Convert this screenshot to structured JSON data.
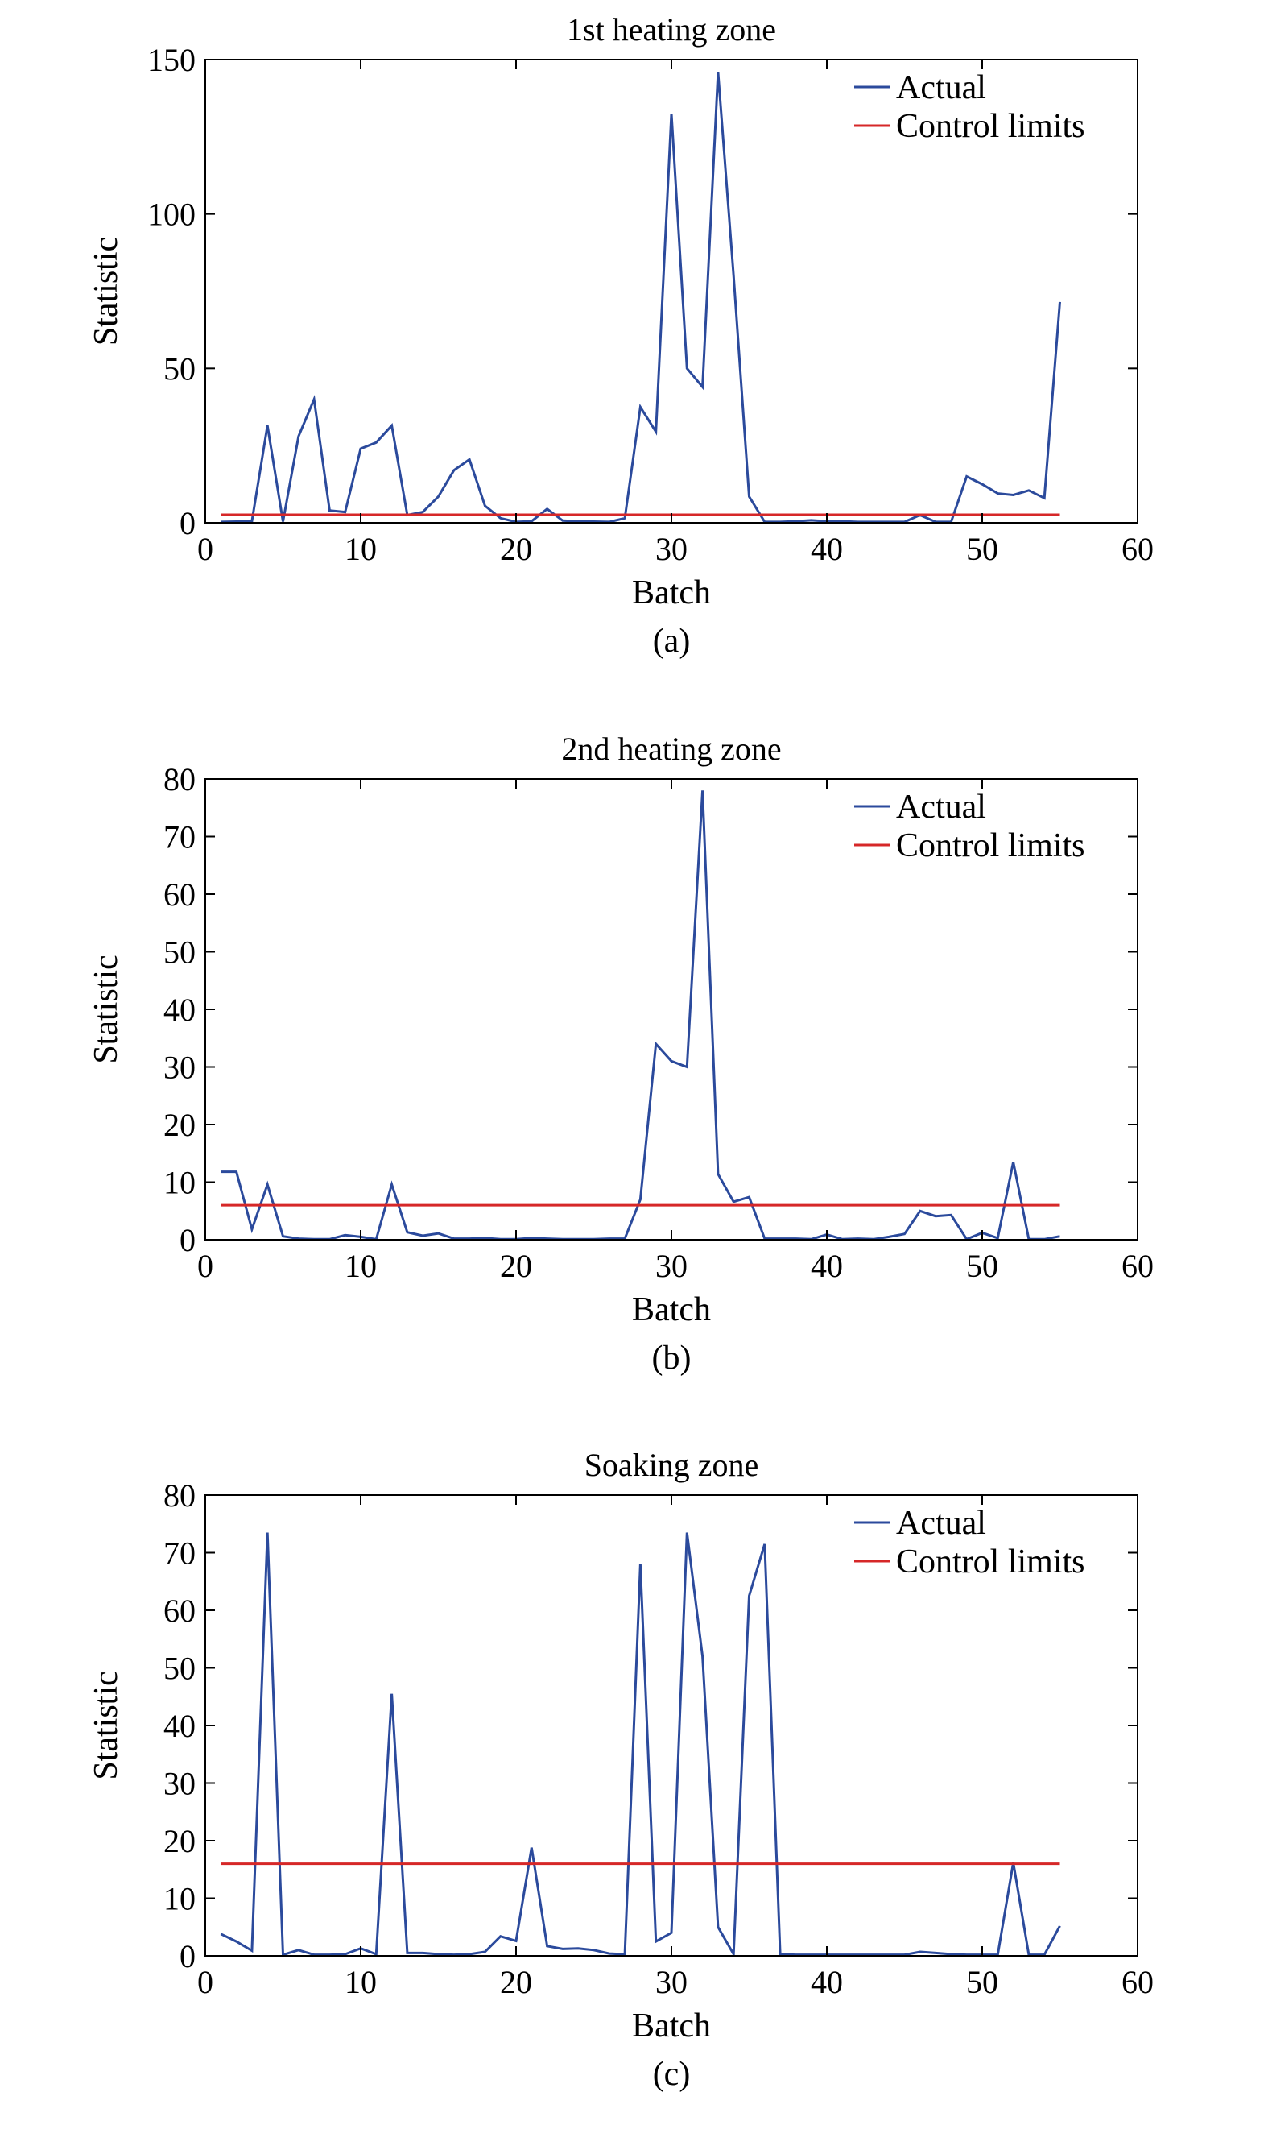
{
  "chart_data": [
    {
      "type": "line",
      "title": "1st heating zone",
      "xlabel": "Batch",
      "ylabel": "Statistic",
      "caption": "(a)",
      "xlim": [
        0,
        60
      ],
      "ylim": [
        0,
        150
      ],
      "xticks": [
        0,
        10,
        20,
        30,
        40,
        50,
        60
      ],
      "yticks": [
        0,
        50,
        100,
        150
      ],
      "grid": false,
      "legend_position": "top-right",
      "series": [
        {
          "name": "Actual",
          "color": "#2b4a9c",
          "x": [
            1,
            2,
            3,
            4,
            5,
            6,
            7,
            8,
            9,
            10,
            11,
            12,
            13,
            14,
            15,
            16,
            17,
            18,
            19,
            20,
            21,
            22,
            23,
            24,
            25,
            26,
            27,
            28,
            29,
            30,
            31,
            32,
            33,
            34,
            35,
            36,
            37,
            38,
            39,
            40,
            41,
            42,
            43,
            44,
            45,
            46,
            47,
            48,
            49,
            50,
            51,
            52,
            53,
            54,
            55
          ],
          "y": [
            0.3,
            0.4,
            0.5,
            31.5,
            0.4,
            28,
            40,
            4,
            3.5,
            24,
            26,
            31.5,
            2.5,
            3.5,
            8.5,
            17,
            20.5,
            5.5,
            1.5,
            0.3,
            0.5,
            4.5,
            0.7,
            0.5,
            0.4,
            0.3,
            1.5,
            37.5,
            29.5,
            132.5,
            50,
            44,
            146,
            80,
            8.5,
            0.3,
            0.3,
            0.5,
            0.8,
            0.5,
            0.5,
            0.3,
            0.3,
            0.3,
            0.3,
            2.5,
            0.3,
            0.3,
            15,
            12.5,
            9.5,
            9,
            10.5,
            8,
            71.5
          ]
        },
        {
          "name": "Control limits",
          "color": "#d62728",
          "x": [
            1,
            55
          ],
          "y": [
            2.6,
            2.6
          ]
        }
      ]
    },
    {
      "type": "line",
      "title": "2nd heating zone",
      "xlabel": "Batch",
      "ylabel": "Statistic",
      "caption": "(b)",
      "xlim": [
        0,
        60
      ],
      "ylim": [
        0,
        80
      ],
      "xticks": [
        0,
        10,
        20,
        30,
        40,
        50,
        60
      ],
      "yticks": [
        0,
        10,
        20,
        30,
        40,
        50,
        60,
        70,
        80
      ],
      "grid": false,
      "legend_position": "top-right",
      "series": [
        {
          "name": "Actual",
          "color": "#2b4a9c",
          "x": [
            1,
            2,
            3,
            4,
            5,
            6,
            7,
            8,
            9,
            10,
            11,
            12,
            13,
            14,
            15,
            16,
            17,
            18,
            19,
            20,
            21,
            22,
            23,
            24,
            25,
            26,
            27,
            28,
            29,
            30,
            31,
            32,
            33,
            34,
            35,
            36,
            37,
            38,
            39,
            40,
            41,
            42,
            43,
            44,
            45,
            46,
            47,
            48,
            49,
            50,
            51,
            52,
            53,
            54,
            55
          ],
          "y": [
            11.8,
            11.8,
            1.8,
            9.6,
            0.6,
            0.2,
            0.1,
            0.1,
            0.8,
            0.5,
            0.1,
            9.6,
            1.3,
            0.7,
            1.1,
            0.2,
            0.2,
            0.3,
            0.1,
            0.1,
            0.3,
            0.2,
            0.1,
            0.1,
            0.1,
            0.2,
            0.2,
            7,
            34,
            31,
            30,
            78,
            11.4,
            6.6,
            7.4,
            0.2,
            0.2,
            0.2,
            0.1,
            0.9,
            0.1,
            0.2,
            0.1,
            0.5,
            1,
            5,
            4.1,
            4.3,
            0.1,
            1.2,
            0.3,
            13.5,
            0.1,
            0.1,
            0.6
          ]
        },
        {
          "name": "Control limits",
          "color": "#d62728",
          "x": [
            1,
            55
          ],
          "y": [
            6,
            6
          ]
        }
      ]
    },
    {
      "type": "line",
      "title": "Soaking zone",
      "xlabel": "Batch",
      "ylabel": "Statistic",
      "caption": "(c)",
      "xlim": [
        0,
        60
      ],
      "ylim": [
        0,
        80
      ],
      "xticks": [
        0,
        10,
        20,
        30,
        40,
        50,
        60
      ],
      "yticks": [
        0,
        10,
        20,
        30,
        40,
        50,
        60,
        70,
        80
      ],
      "grid": false,
      "legend_position": "top-right",
      "series": [
        {
          "name": "Actual",
          "color": "#2b4a9c",
          "x": [
            1,
            2,
            3,
            4,
            5,
            6,
            7,
            8,
            9,
            10,
            11,
            12,
            13,
            14,
            15,
            16,
            17,
            18,
            19,
            20,
            21,
            22,
            23,
            24,
            25,
            26,
            27,
            28,
            29,
            30,
            31,
            32,
            33,
            34,
            35,
            36,
            37,
            38,
            39,
            40,
            41,
            42,
            43,
            44,
            45,
            46,
            47,
            48,
            49,
            50,
            51,
            52,
            53,
            54,
            55
          ],
          "y": [
            3.8,
            2.5,
            0.9,
            73.5,
            0.2,
            1,
            0.2,
            0.2,
            0.3,
            1.3,
            0.3,
            45.5,
            0.5,
            0.5,
            0.3,
            0.2,
            0.3,
            0.7,
            3.4,
            2.6,
            18.8,
            1.7,
            1.2,
            1.3,
            1,
            0.4,
            0.3,
            68,
            2.5,
            4,
            73.5,
            52,
            5,
            0.3,
            62.5,
            71.5,
            0.3,
            0.2,
            0.2,
            0.2,
            0.2,
            0.2,
            0.2,
            0.2,
            0.2,
            0.7,
            0.5,
            0.3,
            0.2,
            0.2,
            0.2,
            16.2,
            0.2,
            0.2,
            5.2
          ]
        },
        {
          "name": "Control limits",
          "color": "#d62728",
          "x": [
            1,
            55
          ],
          "y": [
            16,
            16
          ]
        }
      ]
    }
  ]
}
